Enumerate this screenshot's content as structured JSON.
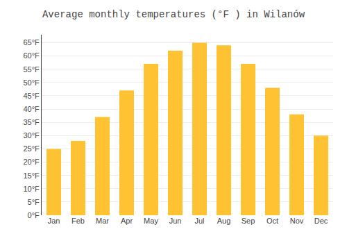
{
  "chart_data": {
    "type": "bar",
    "title": "Average monthly temperatures (°F ) in Wilanów",
    "categories": [
      "Jan",
      "Feb",
      "Mar",
      "Apr",
      "May",
      "Jun",
      "Jul",
      "Aug",
      "Sep",
      "Oct",
      "Nov",
      "Dec"
    ],
    "values": [
      25,
      28,
      37,
      47,
      57,
      62,
      65,
      64,
      57,
      48,
      38,
      30
    ],
    "color": "#FFC233",
    "ylim": [
      0,
      68
    ],
    "yticks": [
      {
        "value": 0,
        "label": "0°F"
      },
      {
        "value": 5,
        "label": "5°F"
      },
      {
        "value": 10,
        "label": "10°F"
      },
      {
        "value": 15,
        "label": "15°F"
      },
      {
        "value": 20,
        "label": "20°F"
      },
      {
        "value": 25,
        "label": "25°F"
      },
      {
        "value": 30,
        "label": "30°F"
      },
      {
        "value": 35,
        "label": "35°F"
      },
      {
        "value": 40,
        "label": "40°F"
      },
      {
        "value": 45,
        "label": "45°F"
      },
      {
        "value": 50,
        "label": "50°F"
      },
      {
        "value": 55,
        "label": "55°F"
      },
      {
        "value": 60,
        "label": "60°F"
      },
      {
        "value": 65,
        "label": "65°F"
      }
    ],
    "grid": true
  }
}
